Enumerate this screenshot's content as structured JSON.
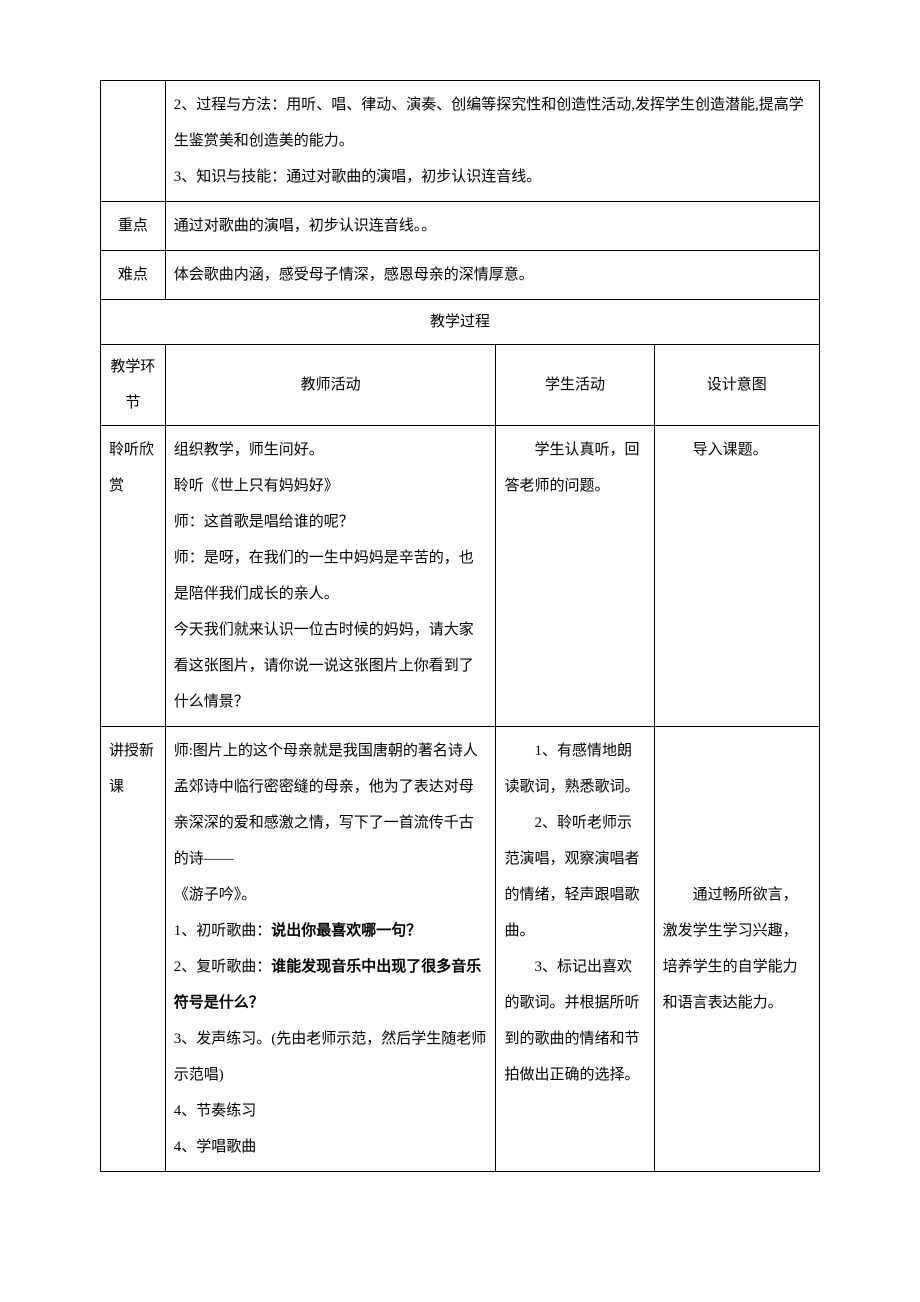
{
  "top": {
    "line1": "2、过程与方法：用听、唱、律动、演奏、创编等探究性和创造性活动,发挥学生创造潜能,提高学生鉴赏美和创造美的能力。",
    "line2": "3、知识与技能：通过对歌曲的演唱，初步认识连音线。"
  },
  "keypoint": {
    "label": "重点",
    "text": "通过对歌曲的演唱，初步认识连音线。。"
  },
  "difficulty": {
    "label": "难点",
    "text": "体会歌曲内涵，感受母子情深，感恩母亲的深情厚意。"
  },
  "process_header": "教学过程",
  "columns": {
    "phase": "教学环节",
    "teacher": "教师活动",
    "student": "学生活动",
    "intent": "设计意图"
  },
  "row1": {
    "phase": "聆听欣赏",
    "teacher": {
      "p1": "组织教学，师生问好。",
      "p2": "聆听《世上只有妈妈好》",
      "p3": "师：这首歌是唱给谁的呢？",
      "p4": "师：是呀，在我们的一生中妈妈是辛苦的，也是陪伴我们成长的亲人。",
      "p5": "今天我们就来认识一位古时候的妈妈，请大家看这张图片，请你说一说这张图片上你看到了什么情景？"
    },
    "student": "学生认真听，回答老师的问题。",
    "intent": "导入课题。"
  },
  "row2": {
    "phase": "讲授新课",
    "teacher": {
      "p1": "师:图片上的这个母亲就是我国唐朝的著名诗人孟郊诗中临行密密缝的母亲，他为了表达对母亲深深的爱和感激之情，写下了一首流传千古的诗——",
      "p2": "《游子吟》。",
      "p3a": "1、初听歌曲：",
      "p3b": "说出你最喜欢哪一句？",
      "p4a": "2、复听歌曲：",
      "p4b": "谁能发现音乐中出现了很多音乐符号是什么？",
      "p5": "3、发声练习。(先由老师示范，然后学生随老师示范唱)",
      "p6": "4、节奏练习",
      "p7": "4、学唱歌曲"
    },
    "student": {
      "p1": "1、有感情地朗读歌词，熟悉歌词。",
      "p2": "2、聆听老师示范演唱，观察演唱者的情绪，轻声跟唱歌曲。",
      "p3": "3、标记出喜欢的歌词。并根据所听到的歌曲的情绪和节拍做出正确的选择。"
    },
    "intent": "通过畅所欲言，激发学生学习兴趣，培养学生的自学能力和语言表达能力。"
  }
}
